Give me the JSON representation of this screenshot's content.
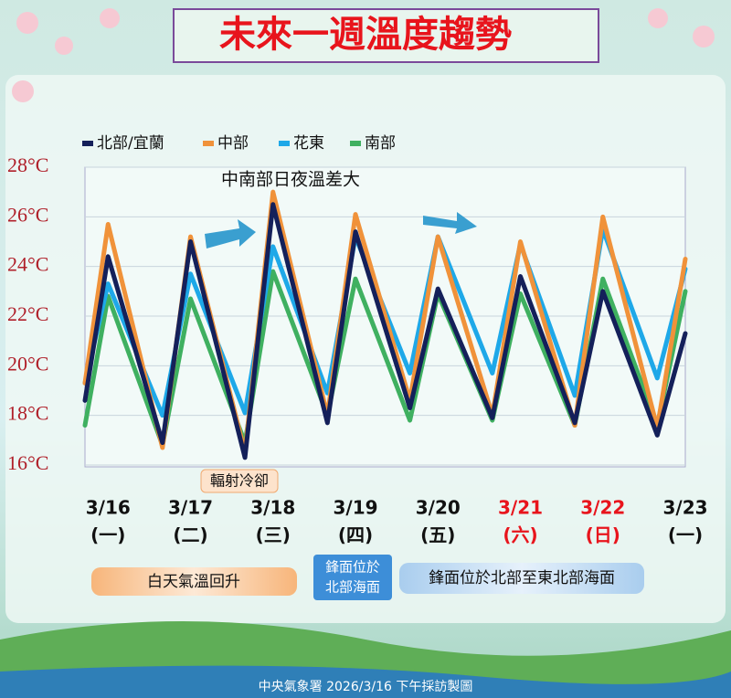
{
  "chart_data": {
    "type": "line",
    "title": "未來一週溫度趨勢",
    "annotation": "中南部日夜溫差大",
    "cooling_note": "輻射冷卻",
    "notes": [
      "白天氣溫回升",
      "鋒面位於北部至東北部海面"
    ],
    "front_box": [
      "鋒面位於",
      "北部海面"
    ],
    "footer": "中央氣象署 2026/3/16 下午採訪製圖",
    "x": [
      -0.28,
      0,
      0.66,
      1,
      1.66,
      2,
      2.66,
      3,
      3.66,
      4,
      4.66,
      5,
      5.66,
      6,
      6.66,
      7
    ],
    "xlim": [
      -0.28,
      7
    ],
    "xticks": [
      {
        "value": 0,
        "label": "3/16"
      },
      {
        "value": 1,
        "label": "3/17"
      },
      {
        "value": 2,
        "label": "3/18"
      },
      {
        "value": 3,
        "label": "3/19"
      },
      {
        "value": 4,
        "label": "3/20"
      },
      {
        "value": 5,
        "label": "3/21"
      },
      {
        "value": 6,
        "label": "3/22"
      },
      {
        "value": 7,
        "label": "3/23"
      }
    ],
    "weekdays": [
      "(一)",
      "(二)",
      "(三)",
      "(四)",
      "(五)",
      "(六)",
      "(日)",
      "(一)"
    ],
    "xtick_colors": [
      "#111",
      "#111",
      "#111",
      "#111",
      "#111",
      "#e8141c",
      "#e8141c",
      "#111"
    ],
    "ylim": [
      16,
      28
    ],
    "yticks": [
      {
        "value": 16,
        "label": "16°C"
      },
      {
        "value": 18,
        "label": "18°C"
      },
      {
        "value": 20,
        "label": "20°C"
      },
      {
        "value": 22,
        "label": "22°C"
      },
      {
        "value": 24,
        "label": "24°C"
      },
      {
        "value": 26,
        "label": "26°C"
      },
      {
        "value": 28,
        "label": "28°C"
      }
    ],
    "grid": true,
    "series": [
      {
        "name": "北部/宜蘭",
        "color": "#14205a",
        "values": [
          18.6,
          24.4,
          16.9,
          25.0,
          16.3,
          26.5,
          17.7,
          25.4,
          18.3,
          23.1,
          17.9,
          23.6,
          17.7,
          23.0,
          17.2,
          21.3
        ]
      },
      {
        "name": "中部",
        "color": "#f0923a",
        "values": [
          19.3,
          25.7,
          16.7,
          25.2,
          16.5,
          27.0,
          18.0,
          26.1,
          18.6,
          25.2,
          18.0,
          25.0,
          17.6,
          26.0,
          17.5,
          24.3
        ]
      },
      {
        "name": "花東",
        "color": "#1ea8e8",
        "values": [
          19.3,
          23.3,
          18.0,
          23.7,
          18.1,
          24.8,
          18.9,
          25.2,
          19.7,
          25.2,
          19.7,
          24.9,
          18.8,
          25.5,
          19.5,
          23.9
        ]
      },
      {
        "name": "南部",
        "color": "#3fb060",
        "values": [
          17.6,
          22.8,
          16.8,
          22.7,
          16.9,
          23.8,
          18.0,
          23.5,
          17.8,
          22.9,
          17.8,
          22.9,
          17.6,
          23.5,
          17.6,
          23.0
        ]
      }
    ]
  }
}
